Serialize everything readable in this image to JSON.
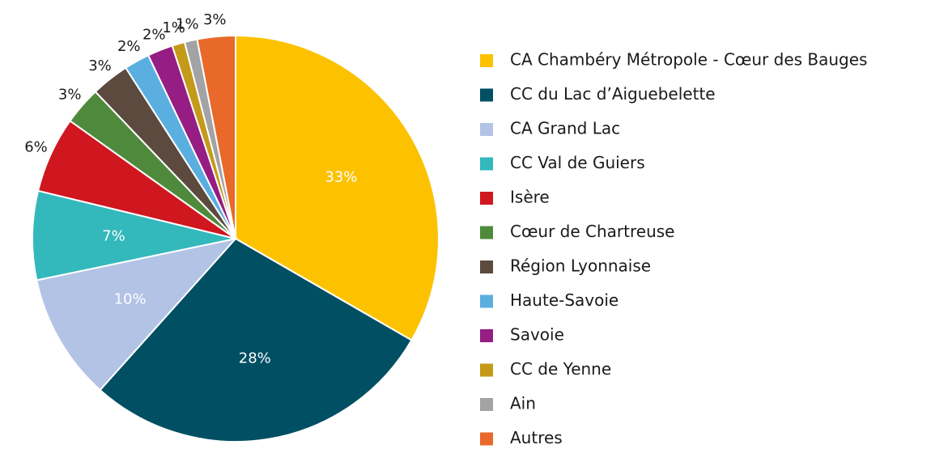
{
  "chart_data": {
    "type": "pie",
    "categories": [
      "CA Chambéry Métropole - Cœur des Bauges",
      "CC du Lac d’Aiguebelette",
      "CA Grand Lac",
      "CC Val de Guiers",
      "Isère",
      "Cœur de Chartreuse",
      "Région Lyonnaise",
      "Haute-Savoie",
      "Savoie",
      "CC de Yenne",
      "Ain",
      "Autres"
    ],
    "values": [
      33,
      28,
      10,
      7,
      6,
      3,
      3,
      2,
      2,
      1,
      1,
      3
    ],
    "value_labels": [
      "33%",
      "28%",
      "10%",
      "7%",
      "6%",
      "3%",
      "3%",
      "2%",
      "2%",
      "1%",
      "1%",
      "3%"
    ],
    "colors": [
      "#fcc200",
      "#004f63",
      "#b3c3e6",
      "#33b8bc",
      "#d0161f",
      "#4f8a3c",
      "#5c4a3f",
      "#5aafe0",
      "#951d83",
      "#c49a1a",
      "#a3a3a5",
      "#e8692a"
    ],
    "legend": "right"
  }
}
